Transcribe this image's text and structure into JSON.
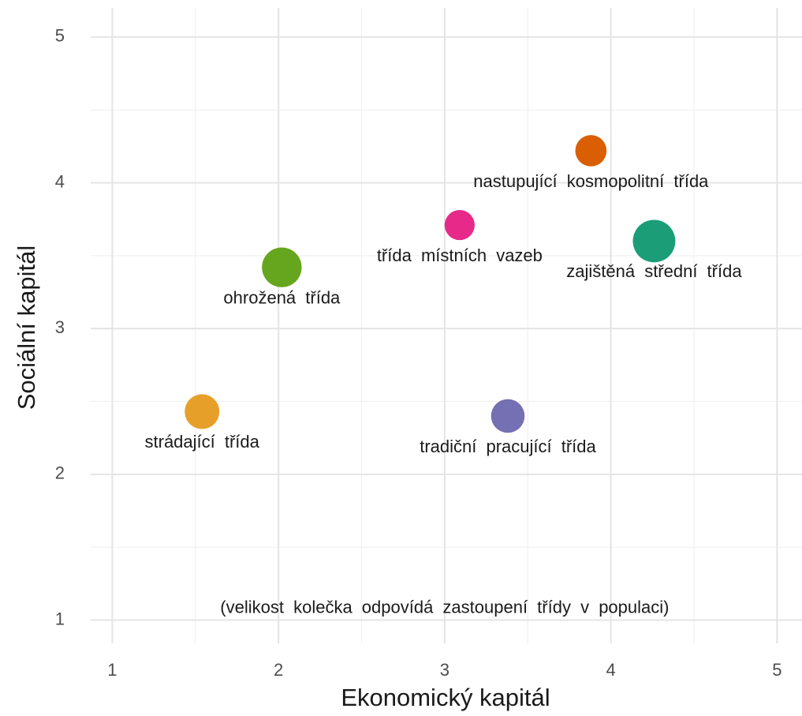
{
  "chart_data": {
    "type": "scatter",
    "x_label": "Ekonomický kapitál",
    "y_label": "Sociální kapitál",
    "annotation": {
      "text": "(velikost kolečka odpovídá zastoupení třídy v populaci)",
      "x": 3.0,
      "y": 1.08
    },
    "labels": [
      "strádající třída",
      "ohrožená třída",
      "třída místních vazeb",
      "tradiční pracující třída",
      "nastupující kosmopolitní třída",
      "zajištěná střední třída"
    ],
    "x": [
      1.54,
      2.02,
      3.09,
      3.38,
      3.88,
      4.26
    ],
    "values": [
      2.43,
      3.42,
      3.71,
      2.4,
      4.22,
      3.6
    ],
    "sizes": [
      16,
      21,
      12,
      15,
      13,
      24
    ],
    "colors": [
      "#e6a02a",
      "#66a61e",
      "#e7298a",
      "#7570b3",
      "#d95f02",
      "#1b9e77"
    ],
    "xlim": [
      0.87,
      5.15
    ],
    "ylim": [
      0.84,
      5.2
    ],
    "xticks": [
      1,
      2,
      3,
      4,
      5
    ],
    "yticks": [
      1,
      2,
      3,
      4,
      5
    ],
    "xminor": [
      1.5,
      2.5,
      3.5,
      4.5
    ],
    "yminor": [
      1.5,
      2.5,
      3.5,
      4.5
    ],
    "grid": true
  }
}
